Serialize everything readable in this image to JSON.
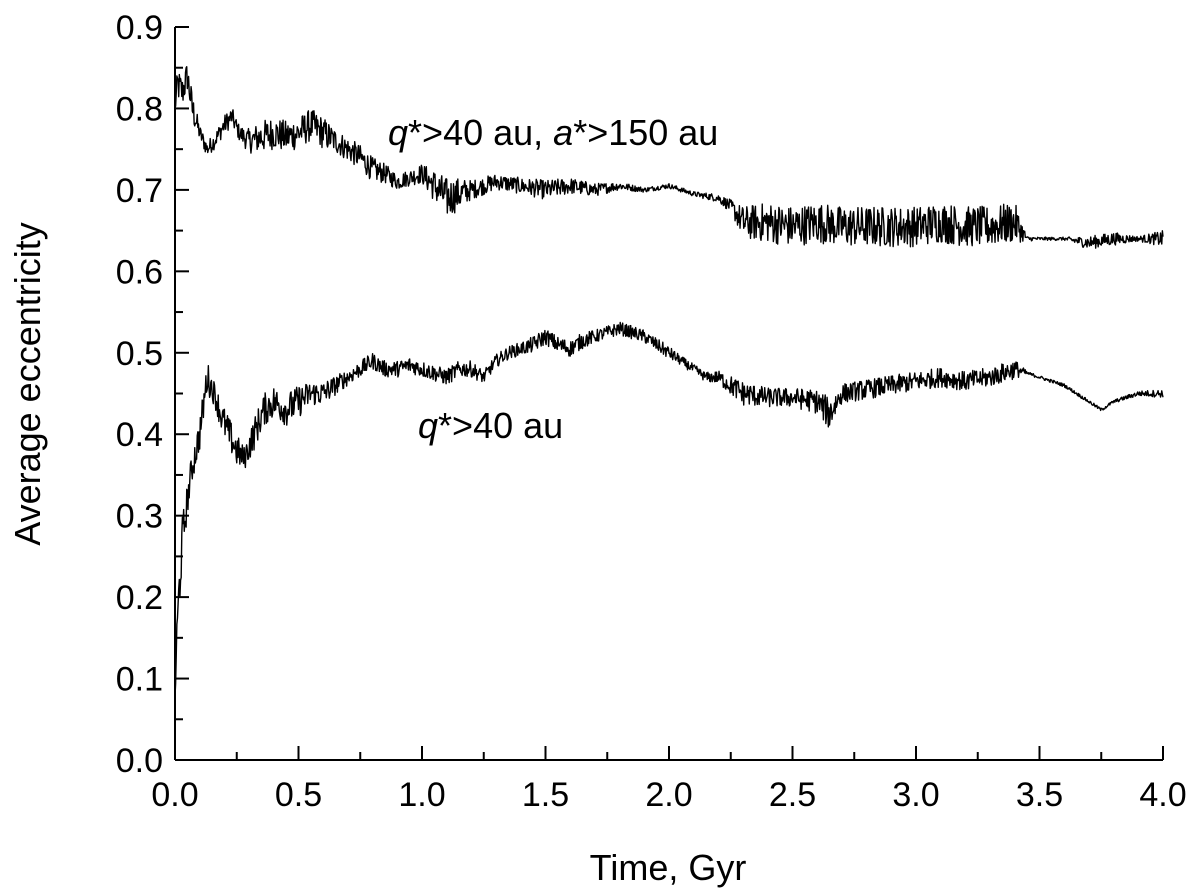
{
  "chart_data": {
    "type": "line",
    "xlabel": "Time, Gyr",
    "ylabel": "Average eccentricity",
    "xlim": [
      0.0,
      4.0
    ],
    "ylim": [
      0.0,
      0.9
    ],
    "x_major_ticks": [
      0.0,
      0.5,
      1.0,
      1.5,
      2.0,
      2.5,
      3.0,
      3.5,
      4.0
    ],
    "x_tick_labels": [
      "0.0",
      "0.5",
      "1.0",
      "1.5",
      "2.0",
      "2.5",
      "3.0",
      "3.5",
      "4.0"
    ],
    "y_major_ticks": [
      0.0,
      0.1,
      0.2,
      0.3,
      0.4,
      0.5,
      0.6,
      0.7,
      0.8,
      0.9
    ],
    "y_tick_labels": [
      "0.0",
      "0.1",
      "0.2",
      "0.3",
      "0.4",
      "0.5",
      "0.6",
      "0.7",
      "0.8",
      "0.9"
    ],
    "grid": false,
    "legend": "none",
    "series": [
      {
        "label_italic_1": "q",
        "label_text_1": "*>40 au, ",
        "label_italic_2": "a",
        "label_text_2": "*>150 au",
        "color": "#000000",
        "x": [
          0.0,
          0.01,
          0.03,
          0.05,
          0.07,
          0.1,
          0.13,
          0.16,
          0.2,
          0.23,
          0.26,
          0.3,
          0.35,
          0.4,
          0.45,
          0.5,
          0.55,
          0.6,
          0.65,
          0.7,
          0.75,
          0.8,
          0.85,
          0.9,
          0.95,
          1.0,
          1.05,
          1.1,
          1.15,
          1.2,
          1.3,
          1.4,
          1.5,
          1.6,
          1.7,
          1.8,
          1.9,
          2.0,
          2.1,
          2.2,
          2.25,
          2.3,
          2.4,
          2.5,
          2.6,
          2.7,
          2.8,
          2.9,
          3.0,
          3.1,
          3.2,
          3.3,
          3.4,
          3.45,
          3.5,
          3.6,
          3.7,
          3.8,
          3.9,
          4.0
        ],
        "y": [
          0.8,
          0.83,
          0.82,
          0.84,
          0.8,
          0.77,
          0.75,
          0.76,
          0.78,
          0.79,
          0.77,
          0.76,
          0.765,
          0.77,
          0.765,
          0.77,
          0.78,
          0.77,
          0.76,
          0.75,
          0.74,
          0.725,
          0.72,
          0.71,
          0.715,
          0.72,
          0.705,
          0.69,
          0.695,
          0.7,
          0.71,
          0.705,
          0.7,
          0.705,
          0.7,
          0.705,
          0.7,
          0.705,
          0.695,
          0.69,
          0.68,
          0.66,
          0.66,
          0.655,
          0.66,
          0.655,
          0.655,
          0.655,
          0.655,
          0.66,
          0.655,
          0.655,
          0.66,
          0.64,
          0.64,
          0.64,
          0.635,
          0.64,
          0.64,
          0.64
        ],
        "noise": [
          0.01,
          0.02,
          0.02,
          0.02,
          0.02,
          0.01,
          0.01,
          0.01,
          0.012,
          0.012,
          0.01,
          0.015,
          0.02,
          0.02,
          0.02,
          0.02,
          0.02,
          0.02,
          0.015,
          0.015,
          0.015,
          0.015,
          0.012,
          0.01,
          0.01,
          0.012,
          0.02,
          0.025,
          0.02,
          0.012,
          0.01,
          0.01,
          0.012,
          0.01,
          0.008,
          0.005,
          0.003,
          0.003,
          0.003,
          0.005,
          0.008,
          0.02,
          0.025,
          0.025,
          0.025,
          0.025,
          0.025,
          0.025,
          0.025,
          0.025,
          0.025,
          0.025,
          0.025,
          0.003,
          0.002,
          0.002,
          0.008,
          0.008,
          0.003,
          0.01
        ]
      },
      {
        "label_italic_1": "q",
        "label_text_1": "*>40 au",
        "color": "#000000",
        "x": [
          0.0,
          0.005,
          0.015,
          0.03,
          0.05,
          0.07,
          0.1,
          0.13,
          0.16,
          0.19,
          0.22,
          0.25,
          0.28,
          0.32,
          0.36,
          0.4,
          0.45,
          0.5,
          0.55,
          0.6,
          0.65,
          0.7,
          0.75,
          0.8,
          0.85,
          0.9,
          0.95,
          1.0,
          1.05,
          1.1,
          1.15,
          1.2,
          1.25,
          1.3,
          1.35,
          1.4,
          1.45,
          1.5,
          1.55,
          1.6,
          1.65,
          1.7,
          1.75,
          1.8,
          1.85,
          1.9,
          1.95,
          2.0,
          2.05,
          2.1,
          2.15,
          2.2,
          2.25,
          2.3,
          2.4,
          2.5,
          2.6,
          2.65,
          2.7,
          2.8,
          2.9,
          3.0,
          3.1,
          3.2,
          3.3,
          3.4,
          3.45,
          3.5,
          3.6,
          3.7,
          3.75,
          3.8,
          3.9,
          4.0
        ],
        "y": [
          0.08,
          0.13,
          0.2,
          0.27,
          0.32,
          0.36,
          0.4,
          0.47,
          0.45,
          0.42,
          0.4,
          0.38,
          0.37,
          0.4,
          0.43,
          0.44,
          0.43,
          0.44,
          0.45,
          0.45,
          0.46,
          0.47,
          0.48,
          0.49,
          0.48,
          0.48,
          0.485,
          0.48,
          0.475,
          0.47,
          0.48,
          0.48,
          0.47,
          0.49,
          0.5,
          0.505,
          0.51,
          0.52,
          0.51,
          0.505,
          0.515,
          0.52,
          0.525,
          0.53,
          0.525,
          0.52,
          0.51,
          0.5,
          0.49,
          0.48,
          0.47,
          0.47,
          0.46,
          0.45,
          0.445,
          0.445,
          0.44,
          0.425,
          0.45,
          0.455,
          0.46,
          0.465,
          0.47,
          0.465,
          0.47,
          0.48,
          0.475,
          0.47,
          0.46,
          0.44,
          0.43,
          0.44,
          0.45,
          0.45
        ],
        "noise": [
          0.03,
          0.03,
          0.03,
          0.03,
          0.02,
          0.02,
          0.02,
          0.02,
          0.015,
          0.02,
          0.02,
          0.02,
          0.015,
          0.02,
          0.02,
          0.02,
          0.02,
          0.02,
          0.015,
          0.015,
          0.012,
          0.01,
          0.01,
          0.01,
          0.01,
          0.01,
          0.01,
          0.01,
          0.01,
          0.01,
          0.01,
          0.01,
          0.008,
          0.008,
          0.008,
          0.008,
          0.01,
          0.01,
          0.01,
          0.01,
          0.01,
          0.008,
          0.008,
          0.008,
          0.008,
          0.008,
          0.008,
          0.008,
          0.006,
          0.006,
          0.006,
          0.008,
          0.012,
          0.015,
          0.012,
          0.012,
          0.015,
          0.02,
          0.012,
          0.012,
          0.012,
          0.012,
          0.012,
          0.012,
          0.012,
          0.012,
          0.002,
          0.002,
          0.002,
          0.002,
          0.002,
          0.002,
          0.003,
          0.005
        ]
      }
    ]
  }
}
